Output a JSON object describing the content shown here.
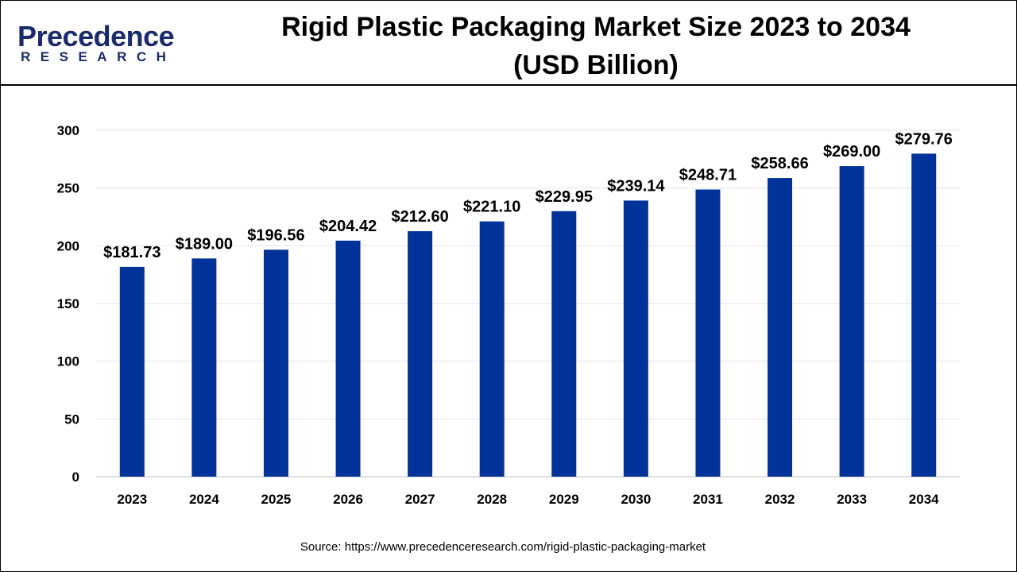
{
  "logo": {
    "line1": "Precedence",
    "line2": "RESEARCH"
  },
  "title_line1": "Rigid Plastic Packaging Market Size 2023 to 2034",
  "title_line2": "(USD Billion)",
  "source": "Source: https://www.precedenceresearch.com/rigid-plastic-packaging-market",
  "chart_data": {
    "type": "bar",
    "title": "Rigid Plastic Packaging Market Size 2023 to 2034 (USD Billion)",
    "categories": [
      "2023",
      "2024",
      "2025",
      "2026",
      "2027",
      "2028",
      "2029",
      "2030",
      "2031",
      "2032",
      "2033",
      "2034"
    ],
    "values": [
      181.73,
      189.0,
      196.56,
      204.42,
      212.6,
      221.1,
      229.95,
      239.14,
      248.71,
      258.66,
      269.0,
      279.76
    ],
    "data_labels": [
      "$181.73",
      "$189.00",
      "$196.56",
      "$204.42",
      "$212.60",
      "$221.10",
      "$229.95",
      "$239.14",
      "$248.71",
      "$258.66",
      "$269.00",
      "$279.76"
    ],
    "yticks": [
      0,
      50,
      100,
      150,
      200,
      250,
      300
    ],
    "ylim": [
      0,
      300
    ],
    "xlabel": "",
    "ylabel": "",
    "grid": true,
    "bar_color": "#00339a"
  }
}
